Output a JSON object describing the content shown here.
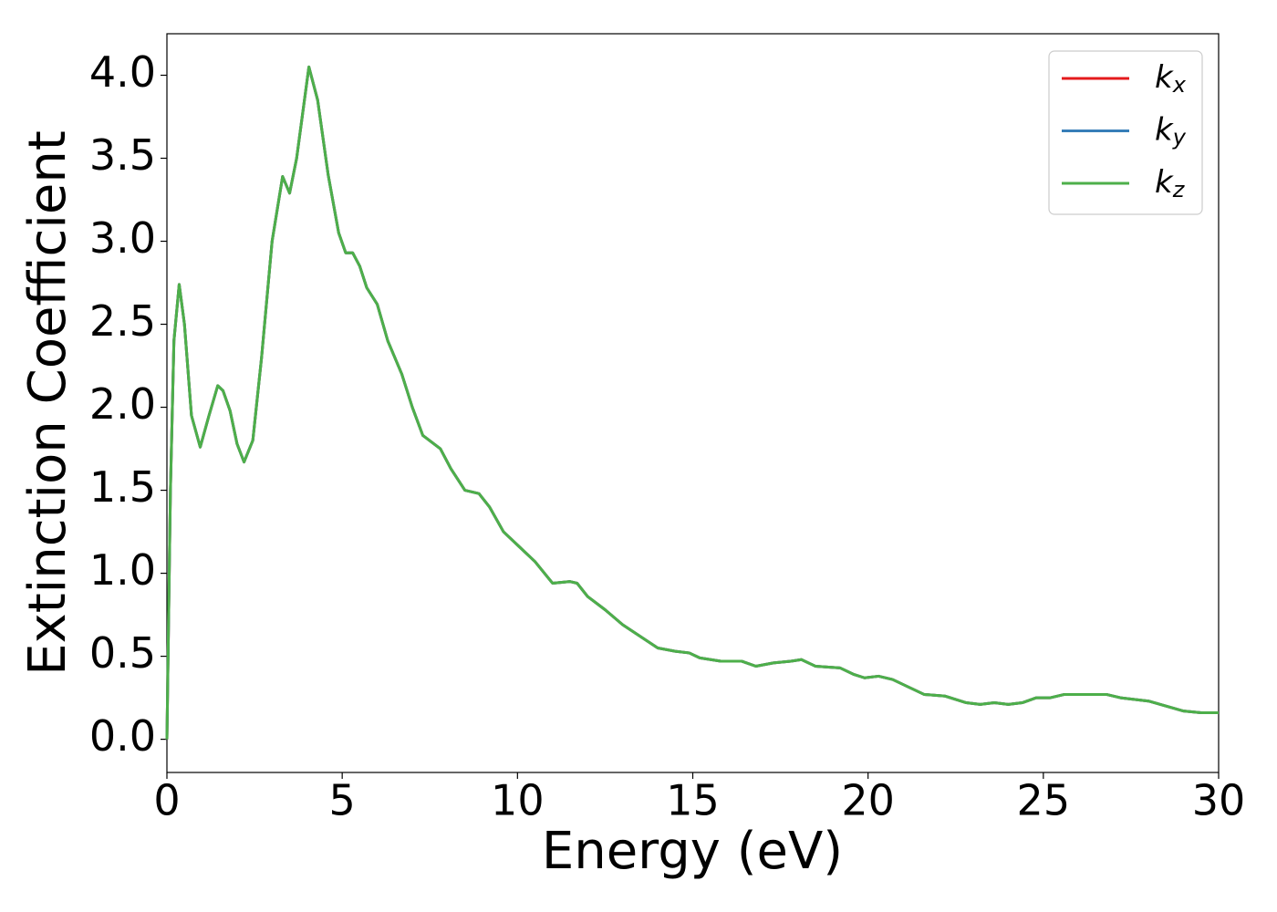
{
  "chart_data": {
    "type": "line",
    "xlabel": "Energy (eV)",
    "ylabel": "Extinction Coefficient",
    "x": [
      0,
      0.1,
      0.2,
      0.35,
      0.5,
      0.7,
      0.95,
      1.2,
      1.45,
      1.6,
      1.8,
      2.0,
      2.2,
      2.45,
      2.7,
      3.0,
      3.3,
      3.5,
      3.7,
      4.05,
      4.3,
      4.6,
      4.9,
      5.1,
      5.3,
      5.5,
      5.7,
      6.0,
      6.3,
      6.7,
      7.0,
      7.3,
      7.8,
      8.1,
      8.5,
      8.9,
      9.2,
      9.6,
      10.0,
      10.5,
      11.0,
      11.5,
      11.7,
      12.0,
      12.5,
      13.0,
      13.5,
      14.0,
      14.5,
      14.9,
      15.2,
      15.8,
      16.4,
      16.8,
      17.3,
      17.8,
      18.1,
      18.5,
      19.2,
      19.6,
      19.9,
      20.3,
      20.7,
      21.2,
      21.6,
      22.2,
      22.8,
      23.2,
      23.6,
      24.0,
      24.4,
      24.8,
      25.2,
      25.6,
      26.0,
      26.5,
      26.8,
      27.2,
      28.0,
      28.5,
      29.0,
      29.5,
      30.0
    ],
    "series": [
      {
        "name": "kx",
        "color": "#e41a1c",
        "values": [
          0.0,
          1.5,
          2.4,
          2.74,
          2.5,
          1.95,
          1.76,
          1.95,
          2.13,
          2.1,
          1.98,
          1.78,
          1.67,
          1.8,
          2.3,
          3.0,
          3.39,
          3.29,
          3.5,
          4.05,
          3.85,
          3.4,
          3.05,
          2.93,
          2.93,
          2.85,
          2.72,
          2.62,
          2.4,
          2.2,
          2.0,
          1.83,
          1.75,
          1.63,
          1.5,
          1.48,
          1.4,
          1.25,
          1.17,
          1.07,
          0.94,
          0.95,
          0.94,
          0.86,
          0.78,
          0.69,
          0.62,
          0.55,
          0.53,
          0.52,
          0.49,
          0.47,
          0.47,
          0.44,
          0.46,
          0.47,
          0.48,
          0.44,
          0.43,
          0.39,
          0.37,
          0.38,
          0.36,
          0.31,
          0.27,
          0.26,
          0.22,
          0.21,
          0.22,
          0.21,
          0.22,
          0.25,
          0.25,
          0.27,
          0.27,
          0.27,
          0.27,
          0.25,
          0.23,
          0.2,
          0.17,
          0.16,
          0.16
        ]
      },
      {
        "name": "ky",
        "color": "#377eb8",
        "values": [
          0.0,
          1.5,
          2.4,
          2.74,
          2.5,
          1.95,
          1.76,
          1.95,
          2.13,
          2.1,
          1.98,
          1.78,
          1.67,
          1.8,
          2.3,
          3.0,
          3.39,
          3.29,
          3.5,
          4.05,
          3.85,
          3.4,
          3.05,
          2.93,
          2.93,
          2.85,
          2.72,
          2.62,
          2.4,
          2.2,
          2.0,
          1.83,
          1.75,
          1.63,
          1.5,
          1.48,
          1.4,
          1.25,
          1.17,
          1.07,
          0.94,
          0.95,
          0.94,
          0.86,
          0.78,
          0.69,
          0.62,
          0.55,
          0.53,
          0.52,
          0.49,
          0.47,
          0.47,
          0.44,
          0.46,
          0.47,
          0.48,
          0.44,
          0.43,
          0.39,
          0.37,
          0.38,
          0.36,
          0.31,
          0.27,
          0.26,
          0.22,
          0.21,
          0.22,
          0.21,
          0.22,
          0.25,
          0.25,
          0.27,
          0.27,
          0.27,
          0.27,
          0.25,
          0.23,
          0.2,
          0.17,
          0.16,
          0.16
        ]
      },
      {
        "name": "kz",
        "color": "#4daf4a",
        "values": [
          0.0,
          1.5,
          2.4,
          2.74,
          2.5,
          1.95,
          1.76,
          1.95,
          2.13,
          2.1,
          1.98,
          1.78,
          1.67,
          1.8,
          2.3,
          3.0,
          3.39,
          3.29,
          3.5,
          4.05,
          3.85,
          3.4,
          3.05,
          2.93,
          2.93,
          2.85,
          2.72,
          2.62,
          2.4,
          2.2,
          2.0,
          1.83,
          1.75,
          1.63,
          1.5,
          1.48,
          1.4,
          1.25,
          1.17,
          1.07,
          0.94,
          0.95,
          0.94,
          0.86,
          0.78,
          0.69,
          0.62,
          0.55,
          0.53,
          0.52,
          0.49,
          0.47,
          0.47,
          0.44,
          0.46,
          0.47,
          0.48,
          0.44,
          0.43,
          0.39,
          0.37,
          0.38,
          0.36,
          0.31,
          0.27,
          0.26,
          0.22,
          0.21,
          0.22,
          0.21,
          0.22,
          0.25,
          0.25,
          0.27,
          0.27,
          0.27,
          0.27,
          0.25,
          0.23,
          0.2,
          0.17,
          0.16,
          0.16
        ]
      }
    ],
    "xlim": [
      0,
      30
    ],
    "xticks": [
      0,
      5,
      10,
      15,
      20,
      25,
      30
    ],
    "ylim": [
      -0.2,
      4.25
    ],
    "yticks": [
      {
        "value": 0,
        "label": "0.0"
      },
      {
        "value": 0.5,
        "label": "0.5"
      },
      {
        "value": 1,
        "label": "1.0"
      },
      {
        "value": 1.5,
        "label": "1.5"
      },
      {
        "value": 2,
        "label": "2.0"
      },
      {
        "value": 2.5,
        "label": "2.5"
      },
      {
        "value": 3,
        "label": "3.0"
      },
      {
        "value": 3.5,
        "label": "3.5"
      },
      {
        "value": 4,
        "label": "4.0"
      }
    ],
    "legend": "upper right",
    "grid": false
  }
}
